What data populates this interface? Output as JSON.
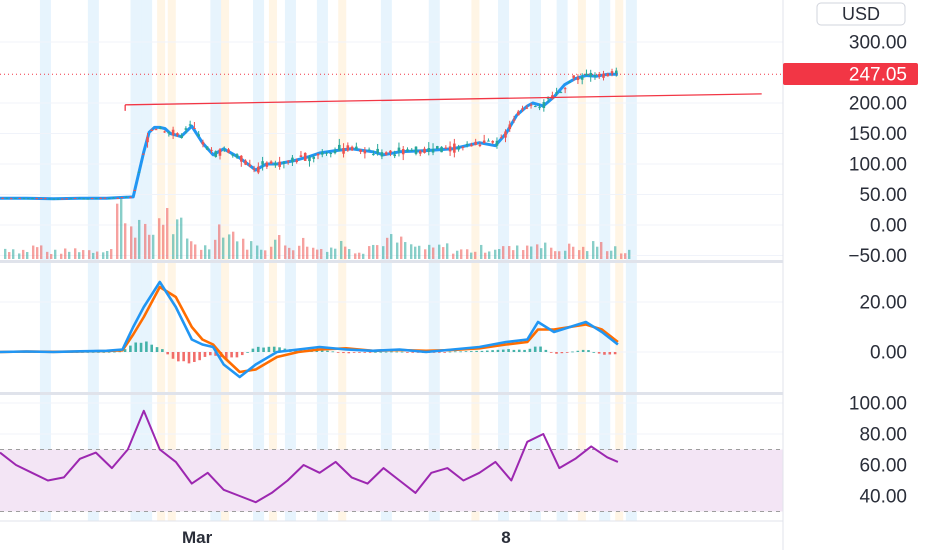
{
  "header": {
    "currency_label": "USD"
  },
  "last_price": {
    "label": "247.05",
    "value": 247.05,
    "color": "#f23645"
  },
  "colors": {
    "candle_up": "#26a69a",
    "candle_down": "#ef5350",
    "ma": "#2196f3",
    "signal": "#ff6d00",
    "rsi": "#9c27b0",
    "rsi_band": "#f3e5f5",
    "trendline": "#f23645",
    "highlight_blue": "#e3f2fd",
    "highlight_orange": "#fff3e0"
  },
  "chart_data": [
    {
      "type": "line",
      "pane": "price",
      "title": "",
      "ylim": [
        -50,
        300
      ],
      "y_ticks": [
        "300.00",
        "200.00",
        "150.00",
        "100.00",
        "50.00",
        "0.00",
        "−50.00"
      ],
      "y_tick_values": [
        300,
        200,
        150,
        100,
        50,
        0,
        -50
      ],
      "x_labels": [
        "Mar",
        "8"
      ],
      "x_label_positions": [
        37,
        95
      ],
      "x": [
        0,
        5,
        10,
        15,
        20,
        25,
        27,
        28,
        29,
        30,
        31,
        32,
        34,
        36,
        38,
        40,
        42,
        45,
        48,
        50,
        52,
        55,
        58,
        60,
        63,
        66,
        70,
        72,
        75,
        80,
        85,
        90,
        93,
        95,
        97,
        99,
        100,
        102,
        104,
        106,
        108,
        110,
        112,
        114,
        116
      ],
      "series": [
        {
          "name": "",
          "values": [
            44,
            44,
            43,
            44,
            44,
            46,
            120,
            152,
            160,
            160,
            158,
            150,
            145,
            162,
            135,
            115,
            125,
            110,
            90,
            100,
            100,
            105,
            112,
            118,
            122,
            125,
            120,
            115,
            120,
            122,
            125,
            135,
            130,
            150,
            180,
            195,
            200,
            195,
            210,
            230,
            240,
            245,
            244,
            247,
            247
          ]
        }
      ],
      "trendline": {
        "from": [
          23.5,
          197
        ],
        "to": [
          143,
          215
        ]
      }
    },
    {
      "type": "bar",
      "pane": "volume",
      "bars": [
        12,
        10,
        14,
        8,
        9,
        11,
        10,
        12,
        60,
        40,
        30,
        50,
        36,
        20,
        14,
        38,
        30,
        18,
        14,
        22,
        16,
        20,
        12,
        14,
        18,
        10,
        16,
        22,
        20,
        14,
        12,
        14,
        10,
        10,
        12,
        14,
        12,
        16,
        20,
        10,
        14,
        12,
        16,
        14,
        8
      ]
    },
    {
      "type": "line",
      "pane": "macd",
      "ylim": [
        -8,
        28
      ],
      "y_ticks": [
        "20.00",
        "0.00"
      ],
      "y_tick_values": [
        20,
        0
      ],
      "x": [
        0,
        5,
        10,
        15,
        20,
        23,
        25,
        27,
        30,
        33,
        36,
        38,
        40,
        42,
        45,
        48,
        52,
        56,
        60,
        65,
        70,
        75,
        80,
        85,
        90,
        95,
        99,
        101,
        104,
        107,
        110,
        113,
        116
      ],
      "series": [
        {
          "name": "",
          "values": [
            0,
            0.2,
            0,
            0.3,
            0.5,
            1,
            10,
            18,
            28,
            18,
            5,
            3,
            2,
            -5,
            -10,
            -5,
            0,
            1,
            2,
            1,
            0.5,
            1,
            0,
            1,
            2,
            4,
            5,
            12,
            8,
            10,
            12,
            8,
            3
          ]
        },
        {
          "name": "",
          "values": [
            0,
            0.2,
            0.1,
            0.2,
            0.4,
            0.7,
            7,
            14,
            26,
            22,
            10,
            5,
            3,
            -2,
            -8,
            -7,
            -2,
            0,
            1,
            1.5,
            0.5,
            0.8,
            0.5,
            0.8,
            1.5,
            3,
            4,
            9,
            9,
            10,
            11,
            9,
            4
          ]
        }
      ],
      "histogram": [
        0,
        0,
        0,
        0,
        0,
        0.3,
        3,
        4,
        2,
        -4,
        -5,
        -2,
        -1,
        -3,
        -2,
        2,
        2,
        1,
        1,
        -0.5,
        0,
        0.2,
        -0.5,
        0.2,
        0.5,
        1,
        1,
        3,
        -1,
        0,
        1,
        -1,
        -1
      ]
    },
    {
      "type": "line",
      "pane": "rsi",
      "ylim": [
        25,
        105
      ],
      "y_ticks": [
        "100.00",
        "80.00",
        "60.00",
        "40.00"
      ],
      "y_tick_values": [
        100,
        80,
        60,
        40
      ],
      "band": [
        30,
        70
      ],
      "x": [
        0,
        3,
        6,
        9,
        12,
        15,
        18,
        21,
        24,
        27,
        30,
        33,
        36,
        39,
        42,
        45,
        48,
        51,
        54,
        57,
        60,
        63,
        66,
        69,
        72,
        75,
        78,
        81,
        84,
        87,
        90,
        93,
        96,
        99,
        102,
        105,
        108,
        111,
        114,
        116
      ],
      "series": [
        {
          "name": "",
          "values": [
            68,
            60,
            55,
            50,
            52,
            64,
            68,
            58,
            70,
            95,
            70,
            62,
            48,
            55,
            44,
            40,
            36,
            42,
            50,
            60,
            55,
            62,
            52,
            48,
            58,
            50,
            42,
            55,
            58,
            50,
            55,
            62,
            50,
            75,
            80,
            58,
            64,
            72,
            65,
            62
          ]
        }
      ]
    }
  ]
}
